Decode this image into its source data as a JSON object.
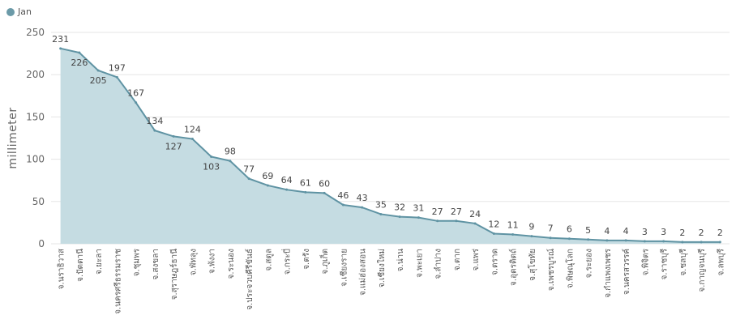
{
  "chart_data": {
    "type": "area",
    "legend": [
      {
        "name": "Jan",
        "color": "#6b9aa8"
      }
    ],
    "legend_position": "top-left",
    "ylabel": "millimeter",
    "ylim": [
      0,
      250
    ],
    "yticks": [
      0,
      50,
      100,
      150,
      200,
      250
    ],
    "grid": true,
    "colors": {
      "line": "#5f93a3",
      "fill": "#c5dce2",
      "grid": "#e6e6e6"
    },
    "categories": [
      "จ.นราธิวาส",
      "จ.ปัตตานี",
      "จ.ยะลา",
      "จ.นครศรีธรรมราช",
      "จ.ชุมพร",
      "จ.สงขลา",
      "จ.สุราษฎร์ธานี",
      "จ.พัทลุง",
      "จ.พังงา",
      "จ.ระนอง",
      "จ.ประจวบคีรีขันธ์",
      "จ.สตูล",
      "จ.กระบี่",
      "จ.ตรัง",
      "จ.ภูเก็ต",
      "จ.เชียงราย",
      "จ.แม่ฮ่องสอน",
      "จ.เชียงใหม่",
      "จ.น่าน",
      "จ.พะเยา",
      "จ.ลำปาง",
      "จ.ตาก",
      "จ.แพร่",
      "จ.ตราด",
      "จ.อุตรดิตถ์",
      "จ.สุโขทัย",
      "จ.เพชรบูรณ์",
      "จ.พิษณุโลก",
      "จ.ระยอง",
      "จ.กำแพงเพชร",
      "จ.นครสวรรค์",
      "จ.พิจิตร",
      "จ.ราชบุรี",
      "จ.ชลบุรี",
      "จ.กาญจนบุรี",
      "จ.ลพบุรี"
    ],
    "series": [
      {
        "name": "Jan",
        "values": [
          231,
          226,
          205,
          197,
          167,
          134,
          127,
          124,
          103,
          98,
          77,
          69,
          64,
          61,
          60,
          46,
          43,
          35,
          32,
          31,
          27,
          27,
          24,
          12,
          11,
          9,
          7,
          6,
          5,
          4,
          4,
          3,
          3,
          2,
          2,
          2
        ]
      }
    ]
  }
}
